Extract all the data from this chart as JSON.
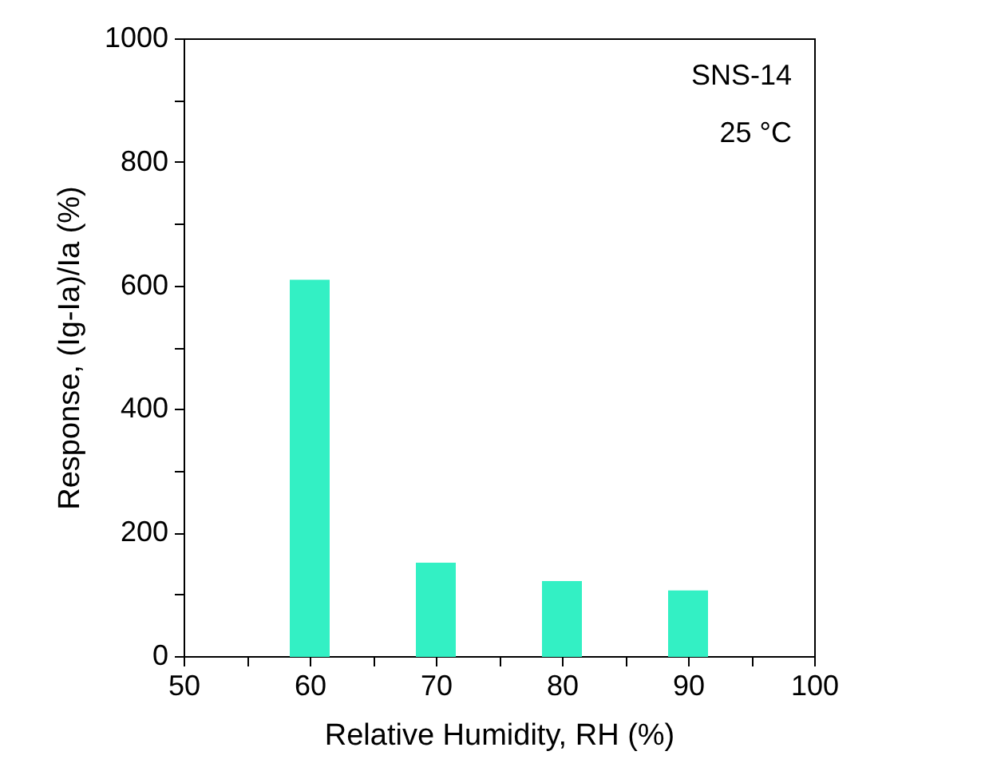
{
  "chart_data": {
    "type": "bar",
    "x": [
      60,
      70,
      80,
      90
    ],
    "values": [
      608,
      150,
      120,
      105
    ],
    "color": "#33f0c4",
    "xlim": [
      50,
      100
    ],
    "xticks": [
      50,
      {
        "value": 55,
        "label": null
      },
      60,
      {
        "value": 65,
        "label": null
      },
      70,
      {
        "value": 75,
        "label": null
      },
      80,
      {
        "value": 85,
        "label": null
      },
      90,
      {
        "value": 95,
        "label": null
      },
      100
    ],
    "ylim": [
      0,
      1000
    ],
    "yticks": [
      0,
      {
        "value": 100,
        "label": null
      },
      200,
      {
        "value": 300,
        "label": null
      },
      400,
      {
        "value": 500,
        "label": null
      },
      600,
      {
        "value": 700,
        "label": null
      },
      800,
      {
        "value": 900,
        "label": null
      },
      1000
    ],
    "xlabel": "Relative Humidity, RH (%)",
    "ylabel": "Response, (Ig-Ia)/Ia (%)",
    "annotations": [
      "SNS-14",
      "25 °C"
    ],
    "grid": false
  }
}
